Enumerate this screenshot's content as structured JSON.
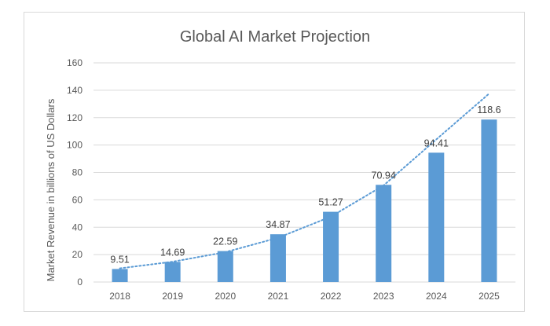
{
  "chart_data": {
    "type": "bar",
    "title": "Global AI Market Projection",
    "xlabel": "",
    "ylabel": "Market Revenue in billions of US Dollars",
    "categories": [
      "2018",
      "2019",
      "2020",
      "2021",
      "2022",
      "2023",
      "2024",
      "2025"
    ],
    "values": [
      9.51,
      14.69,
      22.59,
      34.87,
      51.27,
      70.94,
      94.41,
      118.6
    ],
    "data_labels": [
      "9.51",
      "14.69",
      "22.59",
      "34.87",
      "51.27",
      "70.94",
      "94.41",
      "118.6"
    ],
    "ylim": [
      0,
      160
    ],
    "yticks": [
      0,
      20,
      40,
      60,
      80,
      100,
      120,
      140,
      160
    ],
    "grid": true,
    "legend": "none",
    "trendline": {
      "type": "exponential",
      "style": "dotted",
      "values": [
        10.0,
        14.8,
        21.8,
        32.3,
        47.7,
        70.5,
        104.1,
        137.5
      ]
    },
    "colors": {
      "bar": "#5b9bd5",
      "trendline": "#5b9bd5",
      "grid": "#d9d9d9",
      "text": "#595959"
    }
  }
}
